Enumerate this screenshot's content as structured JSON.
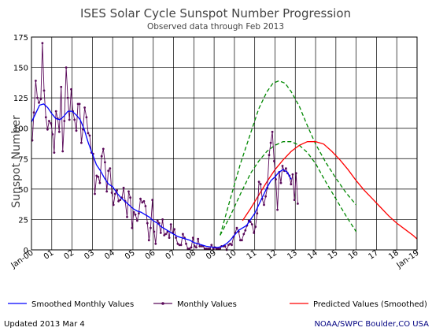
{
  "chart_data": {
    "type": "line",
    "title": "ISES Solar Cycle Sunspot Number Progression",
    "subtitle": "Observed data through Feb 2013",
    "ylabel": "Sunspot Number",
    "xlabel": "",
    "ylim": [
      0,
      175
    ],
    "xlim": [
      2000.0,
      2019.0
    ],
    "y_ticks": [
      0,
      25,
      50,
      75,
      100,
      125,
      150,
      175
    ],
    "x_ticks": [
      {
        "x": 2000,
        "label": "Jan-00"
      },
      {
        "x": 2001,
        "label": "01"
      },
      {
        "x": 2002,
        "label": "02"
      },
      {
        "x": 2003,
        "label": "03"
      },
      {
        "x": 2004,
        "label": "04"
      },
      {
        "x": 2005,
        "label": "05"
      },
      {
        "x": 2006,
        "label": "06"
      },
      {
        "x": 2007,
        "label": "07"
      },
      {
        "x": 2008,
        "label": "08"
      },
      {
        "x": 2009,
        "label": "09"
      },
      {
        "x": 2010,
        "label": "10"
      },
      {
        "x": 2011,
        "label": "11"
      },
      {
        "x": 2012,
        "label": "12"
      },
      {
        "x": 2013,
        "label": "13"
      },
      {
        "x": 2014,
        "label": "14"
      },
      {
        "x": 2015,
        "label": "15"
      },
      {
        "x": 2016,
        "label": "16"
      },
      {
        "x": 2017,
        "label": "17"
      },
      {
        "x": 2018,
        "label": "18"
      },
      {
        "x": 2019,
        "label": "Jan-19"
      }
    ],
    "grid": true,
    "colors": {
      "monthly": "#5a0a5a",
      "smoothed": "#0000ff",
      "predicted": "#ff0000",
      "bounds": "#008800",
      "text": "#444444",
      "footer_right": "#000080"
    },
    "series": [
      {
        "name": "Monthly Values",
        "style": "line-markers",
        "x": [
          2000.04,
          2000.12,
          2000.21,
          2000.29,
          2000.37,
          2000.46,
          2000.54,
          2000.62,
          2000.71,
          2000.79,
          2000.87,
          2000.96,
          2001.04,
          2001.12,
          2001.21,
          2001.29,
          2001.37,
          2001.46,
          2001.54,
          2001.62,
          2001.71,
          2001.79,
          2001.87,
          2001.96,
          2002.04,
          2002.12,
          2002.21,
          2002.29,
          2002.37,
          2002.46,
          2002.54,
          2002.62,
          2002.71,
          2002.79,
          2002.87,
          2002.96,
          2003.04,
          2003.12,
          2003.21,
          2003.29,
          2003.37,
          2003.46,
          2003.54,
          2003.62,
          2003.71,
          2003.79,
          2003.87,
          2003.96,
          2004.04,
          2004.12,
          2004.21,
          2004.29,
          2004.37,
          2004.46,
          2004.54,
          2004.62,
          2004.71,
          2004.79,
          2004.87,
          2004.96,
          2005.04,
          2005.12,
          2005.21,
          2005.29,
          2005.37,
          2005.46,
          2005.54,
          2005.62,
          2005.71,
          2005.79,
          2005.87,
          2005.96,
          2006.04,
          2006.12,
          2006.21,
          2006.29,
          2006.37,
          2006.46,
          2006.54,
          2006.62,
          2006.71,
          2006.79,
          2006.87,
          2006.96,
          2007.04,
          2007.12,
          2007.21,
          2007.29,
          2007.37,
          2007.46,
          2007.54,
          2007.62,
          2007.71,
          2007.79,
          2007.87,
          2007.96,
          2008.04,
          2008.12,
          2008.21,
          2008.29,
          2008.37,
          2008.46,
          2008.54,
          2008.62,
          2008.71,
          2008.79,
          2008.87,
          2008.96,
          2009.04,
          2009.12,
          2009.21,
          2009.29,
          2009.37,
          2009.46,
          2009.54,
          2009.62,
          2009.71,
          2009.79,
          2009.87,
          2009.96,
          2010.04,
          2010.12,
          2010.21,
          2010.29,
          2010.37,
          2010.46,
          2010.54,
          2010.62,
          2010.71,
          2010.79,
          2010.87,
          2010.96,
          2011.04,
          2011.12,
          2011.21,
          2011.29,
          2011.37,
          2011.46,
          2011.54,
          2011.62,
          2011.71,
          2011.79,
          2011.87,
          2011.96,
          2012.04,
          2012.12,
          2012.21,
          2012.29,
          2012.37,
          2012.46,
          2012.54,
          2012.62,
          2012.71,
          2012.79,
          2012.87,
          2012.96,
          2013.04,
          2013.12
        ],
        "values": [
          90,
          113,
          139,
          125,
          121,
          124,
          170,
          131,
          109,
          99,
          106,
          104,
          95,
          80,
          114,
          108,
          97,
          134,
          81,
          106,
          150,
          125,
          107,
          132,
          114,
          107,
          98,
          120,
          120,
          88,
          99,
          117,
          109,
          96,
          94,
          80,
          79,
          46,
          61,
          60,
          55,
          77,
          83,
          72,
          48,
          65,
          67,
          47,
          37,
          46,
          49,
          40,
          41,
          43,
          51,
          40,
          27,
          48,
          43,
          18,
          31,
          29,
          24,
          30,
          42,
          39,
          40,
          36,
          22,
          8,
          18,
          41,
          15,
          5,
          24,
          22,
          14,
          25,
          12,
          13,
          15,
          10,
          21,
          14,
          17,
          10,
          5,
          4,
          4,
          13,
          10,
          5,
          1,
          1,
          2,
          10,
          3,
          2,
          9,
          3,
          3,
          3,
          1,
          1,
          1,
          1,
          4,
          1,
          2,
          1,
          1,
          1,
          3,
          3,
          3,
          0,
          4,
          5,
          4,
          11,
          14,
          18,
          15,
          8,
          8,
          13,
          16,
          20,
          24,
          23,
          21,
          14,
          19,
          30,
          56,
          54,
          42,
          37,
          44,
          51,
          78,
          88,
          97,
          73,
          58,
          33,
          64,
          55,
          69,
          65,
          67,
          63,
          61,
          54,
          62,
          41,
          63,
          38
        ]
      },
      {
        "name": "Smoothed Monthly Values",
        "style": "line",
        "x": [
          2000.0,
          2000.2,
          2000.4,
          2000.6,
          2000.8,
          2001.0,
          2001.2,
          2001.4,
          2001.6,
          2001.8,
          2002.0,
          2002.2,
          2002.4,
          2002.6,
          2002.8,
          2003.0,
          2003.2,
          2003.4,
          2003.6,
          2003.8,
          2004.0,
          2004.2,
          2004.4,
          2004.6,
          2004.8,
          2005.0,
          2005.2,
          2005.4,
          2005.6,
          2005.8,
          2006.0,
          2006.2,
          2006.4,
          2006.6,
          2006.8,
          2007.0,
          2007.2,
          2007.4,
          2007.6,
          2007.8,
          2008.0,
          2008.2,
          2008.4,
          2008.6,
          2008.8,
          2009.0,
          2009.2,
          2009.4,
          2009.6,
          2009.8,
          2010.0,
          2010.2,
          2010.4,
          2010.6,
          2010.8,
          2011.0,
          2011.2,
          2011.4,
          2011.6,
          2011.8,
          2012.0,
          2012.2,
          2012.4,
          2012.6,
          2012.8
        ],
        "values": [
          105,
          112,
          119,
          120,
          117,
          112,
          108,
          107,
          110,
          114,
          114,
          111,
          107,
          99,
          88,
          79,
          70,
          65,
          59,
          54,
          52,
          47,
          43,
          40,
          37,
          34,
          32,
          31,
          29,
          27,
          24,
          22,
          19,
          17,
          15,
          13,
          11,
          10,
          9,
          8,
          6,
          5,
          4,
          3,
          2.5,
          2,
          2,
          3,
          5,
          8,
          12,
          16,
          18,
          20,
          25,
          30,
          37,
          44,
          51,
          57,
          60,
          64,
          66,
          64,
          58
        ]
      },
      {
        "name": "Predicted Values (Smoothed)",
        "style": "line",
        "x": [
          2010.4,
          2010.8,
          2011.2,
          2011.6,
          2012.0,
          2012.4,
          2012.8,
          2013.2,
          2013.6,
          2014.0,
          2014.4,
          2014.8,
          2015.2,
          2015.6,
          2016.0,
          2016.4,
          2016.8,
          2017.2,
          2017.6,
          2018.0,
          2018.4,
          2018.8,
          2019.0
        ],
        "values": [
          24,
          34,
          45,
          56,
          66,
          74,
          81,
          86,
          89,
          89,
          87,
          81,
          74,
          66,
          57,
          49,
          42,
          35,
          28,
          22,
          17,
          12,
          9
        ]
      },
      {
        "style": "dashed",
        "x": [
          2009.3,
          2009.8,
          2010.3,
          2010.8,
          2011.2,
          2011.6,
          2011.9,
          2012.2,
          2012.5,
          2012.8,
          2013.2,
          2013.6,
          2014.0,
          2014.5,
          2015.0,
          2015.5,
          2016.0
        ],
        "values": [
          12,
          42,
          71,
          96,
          116,
          130,
          137,
          139,
          137,
          130,
          118,
          102,
          87,
          72,
          59,
          47,
          37
        ]
      },
      {
        "style": "dashed",
        "x": [
          2009.3,
          2009.8,
          2010.3,
          2010.8,
          2011.2,
          2011.6,
          2012.0,
          2012.4,
          2012.8,
          2013.2,
          2013.6,
          2014.0,
          2014.5,
          2015.0,
          2015.5,
          2016.0
        ],
        "values": [
          12,
          28,
          46,
          63,
          73,
          81,
          86,
          89,
          89,
          86,
          80,
          71,
          56,
          42,
          28,
          15
        ]
      }
    ],
    "legend": [
      {
        "label": "Smoothed Monthly Values",
        "series": "Smoothed Monthly Values"
      },
      {
        "label": "Monthly Values",
        "series": "Monthly Values"
      },
      {
        "label": "Predicted Values (Smoothed)",
        "series": "Predicted Values (Smoothed)"
      }
    ],
    "legend_placement": "bottom"
  },
  "footer": {
    "left": "Updated 2013 Mar  4",
    "right": "NOAA/SWPC Boulder,CO USA"
  }
}
